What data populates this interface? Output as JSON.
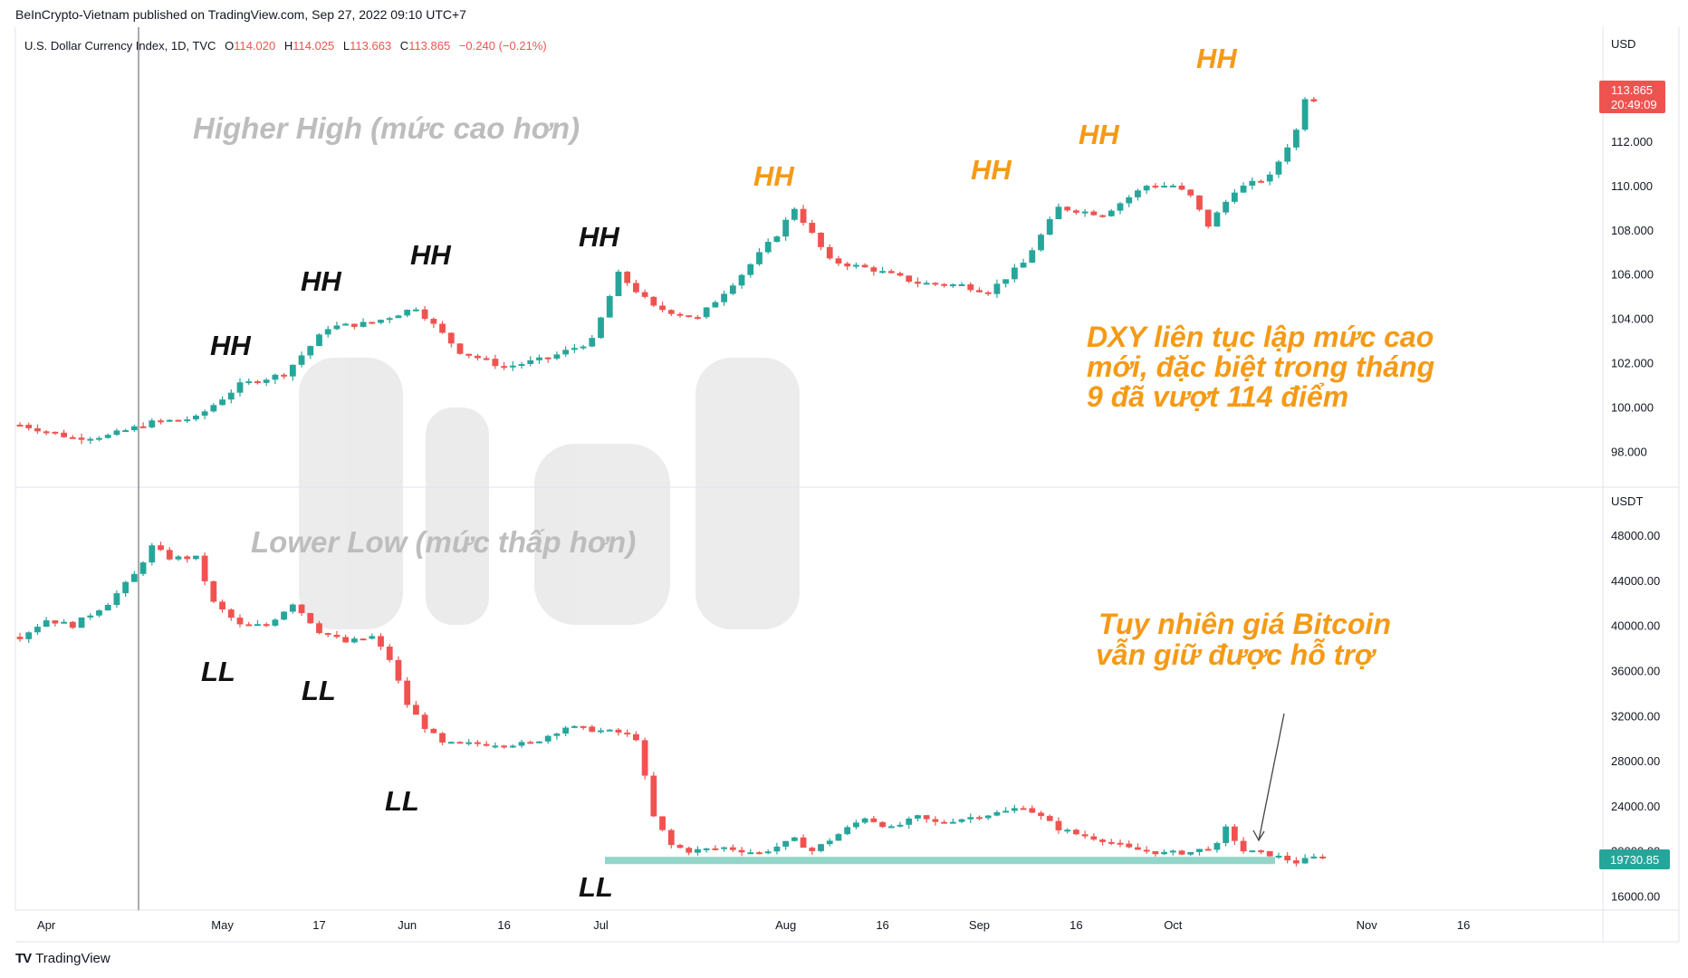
{
  "header": {
    "publisher": "BeInCrypto-Vietnam published on TradingView.com, Sep 27, 2022 09:10 UTC+7"
  },
  "legend": {
    "name": "U.S. Dollar Currency Index, 1D, TVC",
    "o_label": "O",
    "o": "114.020",
    "h_label": "H",
    "h": "114.025",
    "l_label": "L",
    "l": "113.663",
    "c_label": "C",
    "c": "113.865",
    "change": "−0.240 (−0.21%)"
  },
  "footer": {
    "brand": "TradingView",
    "logo": "TV"
  },
  "colors": {
    "up": "#26a69a",
    "down": "#ef5350",
    "orange": "#f59a16",
    "support": "#93d5c8"
  },
  "chart_data": [
    {
      "type": "candlestick",
      "pane": "top",
      "currency": "USD",
      "ylim": [
        96.5,
        116.5
      ],
      "yticks": [
        "112.000",
        "110.000",
        "108.000",
        "106.000",
        "104.000",
        "102.000",
        "100.000",
        "98.000"
      ],
      "last_price": "113.865",
      "countdown": "20:49:09",
      "annotations": {
        "title": "Higher High (mức cao hơn)",
        "hh": "HH",
        "note_lines": [
          "DXY liên tục lập mức cao",
          "mới, đặc biệt trong tháng",
          "9 đã vượt 114 điểm"
        ]
      },
      "anchors": [
        [
          0,
          99.2
        ],
        [
          6,
          98.6
        ],
        [
          10,
          98.7
        ],
        [
          15,
          99.3
        ],
        [
          20,
          99.5
        ],
        [
          25,
          101.0
        ],
        [
          30,
          101.5
        ],
        [
          35,
          103.6
        ],
        [
          40,
          103.8
        ],
        [
          45,
          104.5
        ],
        [
          50,
          102.5
        ],
        [
          55,
          101.8
        ],
        [
          60,
          102.2
        ],
        [
          65,
          103.0
        ],
        [
          68,
          106.0
        ],
        [
          72,
          104.5
        ],
        [
          77,
          104.0
        ],
        [
          82,
          106.0
        ],
        [
          86,
          107.8
        ],
        [
          88,
          109.0
        ],
        [
          92,
          106.6
        ],
        [
          97,
          106.2
        ],
        [
          102,
          105.6
        ],
        [
          107,
          105.5
        ],
        [
          110,
          105.2
        ],
        [
          114,
          106.5
        ],
        [
          118,
          109.0
        ],
        [
          123,
          108.7
        ],
        [
          128,
          110.0
        ],
        [
          131,
          110.0
        ],
        [
          133,
          109.5
        ],
        [
          135,
          108.2
        ],
        [
          138,
          109.8
        ],
        [
          142,
          110.4
        ],
        [
          145,
          112.5
        ],
        [
          146,
          114.0
        ],
        [
          147,
          113.9
        ]
      ]
    },
    {
      "type": "candlestick",
      "pane": "bottom",
      "currency": "USDT",
      "ylim": [
        15000,
        50500
      ],
      "yticks": [
        "48000.00",
        "44000.00",
        "40000.00",
        "36000.00",
        "32000.00",
        "28000.00",
        "24000.00",
        "20000.00",
        "16000.00"
      ],
      "last_price": "19730.85",
      "support_level": 19000,
      "annotations": {
        "title": "Lower Low (mức thấp hơn)",
        "ll": "LL",
        "note_lines": [
          "Tuy nhiên giá Bitcoin",
          "vẫn giữ được hỗ trợ"
        ]
      },
      "anchors": [
        [
          0,
          39000
        ],
        [
          3,
          40500
        ],
        [
          6,
          40000
        ],
        [
          8,
          41000
        ],
        [
          10,
          42000
        ],
        [
          13,
          44500
        ],
        [
          15,
          47000
        ],
        [
          17,
          46000
        ],
        [
          20,
          46000
        ],
        [
          22,
          42000
        ],
        [
          25,
          40000
        ],
        [
          28,
          40000
        ],
        [
          31,
          42000
        ],
        [
          34,
          39500
        ],
        [
          37,
          38500
        ],
        [
          40,
          39000
        ],
        [
          42,
          37000
        ],
        [
          44,
          33000
        ],
        [
          46,
          31000
        ],
        [
          48,
          29500
        ],
        [
          52,
          29500
        ],
        [
          58,
          29500
        ],
        [
          62,
          31000
        ],
        [
          68,
          30500
        ],
        [
          70,
          30000
        ],
        [
          72,
          23000
        ],
        [
          74,
          20500
        ],
        [
          76,
          20000
        ],
        [
          80,
          20300
        ],
        [
          84,
          19800
        ],
        [
          88,
          21000
        ],
        [
          90,
          20000
        ],
        [
          93,
          21500
        ],
        [
          96,
          23000
        ],
        [
          99,
          22000
        ],
        [
          102,
          23000
        ],
        [
          104,
          22500
        ],
        [
          108,
          23000
        ],
        [
          112,
          23500
        ],
        [
          114,
          24000
        ],
        [
          116,
          23000
        ],
        [
          118,
          22000
        ],
        [
          120,
          21500
        ],
        [
          123,
          21000
        ],
        [
          126,
          20200
        ],
        [
          130,
          19800
        ],
        [
          133,
          19900
        ],
        [
          136,
          20500
        ],
        [
          137,
          22000
        ],
        [
          139,
          20000
        ],
        [
          142,
          19700
        ],
        [
          145,
          19000
        ],
        [
          148,
          19600
        ]
      ]
    }
  ],
  "x_axis": {
    "ticks": [
      {
        "i": -9,
        "label": "16"
      },
      {
        "i": 3,
        "label": "Apr"
      },
      {
        "i": 23,
        "label": "May"
      },
      {
        "i": 34,
        "label": "17"
      },
      {
        "i": 44,
        "label": "Jun"
      },
      {
        "i": 55,
        "label": "16"
      },
      {
        "i": 66,
        "label": "Jul"
      },
      {
        "i": 87,
        "label": "Aug"
      },
      {
        "i": 98,
        "label": "16"
      },
      {
        "i": 109,
        "label": "Sep"
      },
      {
        "i": 120,
        "label": "16"
      },
      {
        "i": 131,
        "label": "Oct"
      },
      {
        "i": 153,
        "label": "Nov"
      },
      {
        "i": 164,
        "label": "16"
      }
    ]
  }
}
